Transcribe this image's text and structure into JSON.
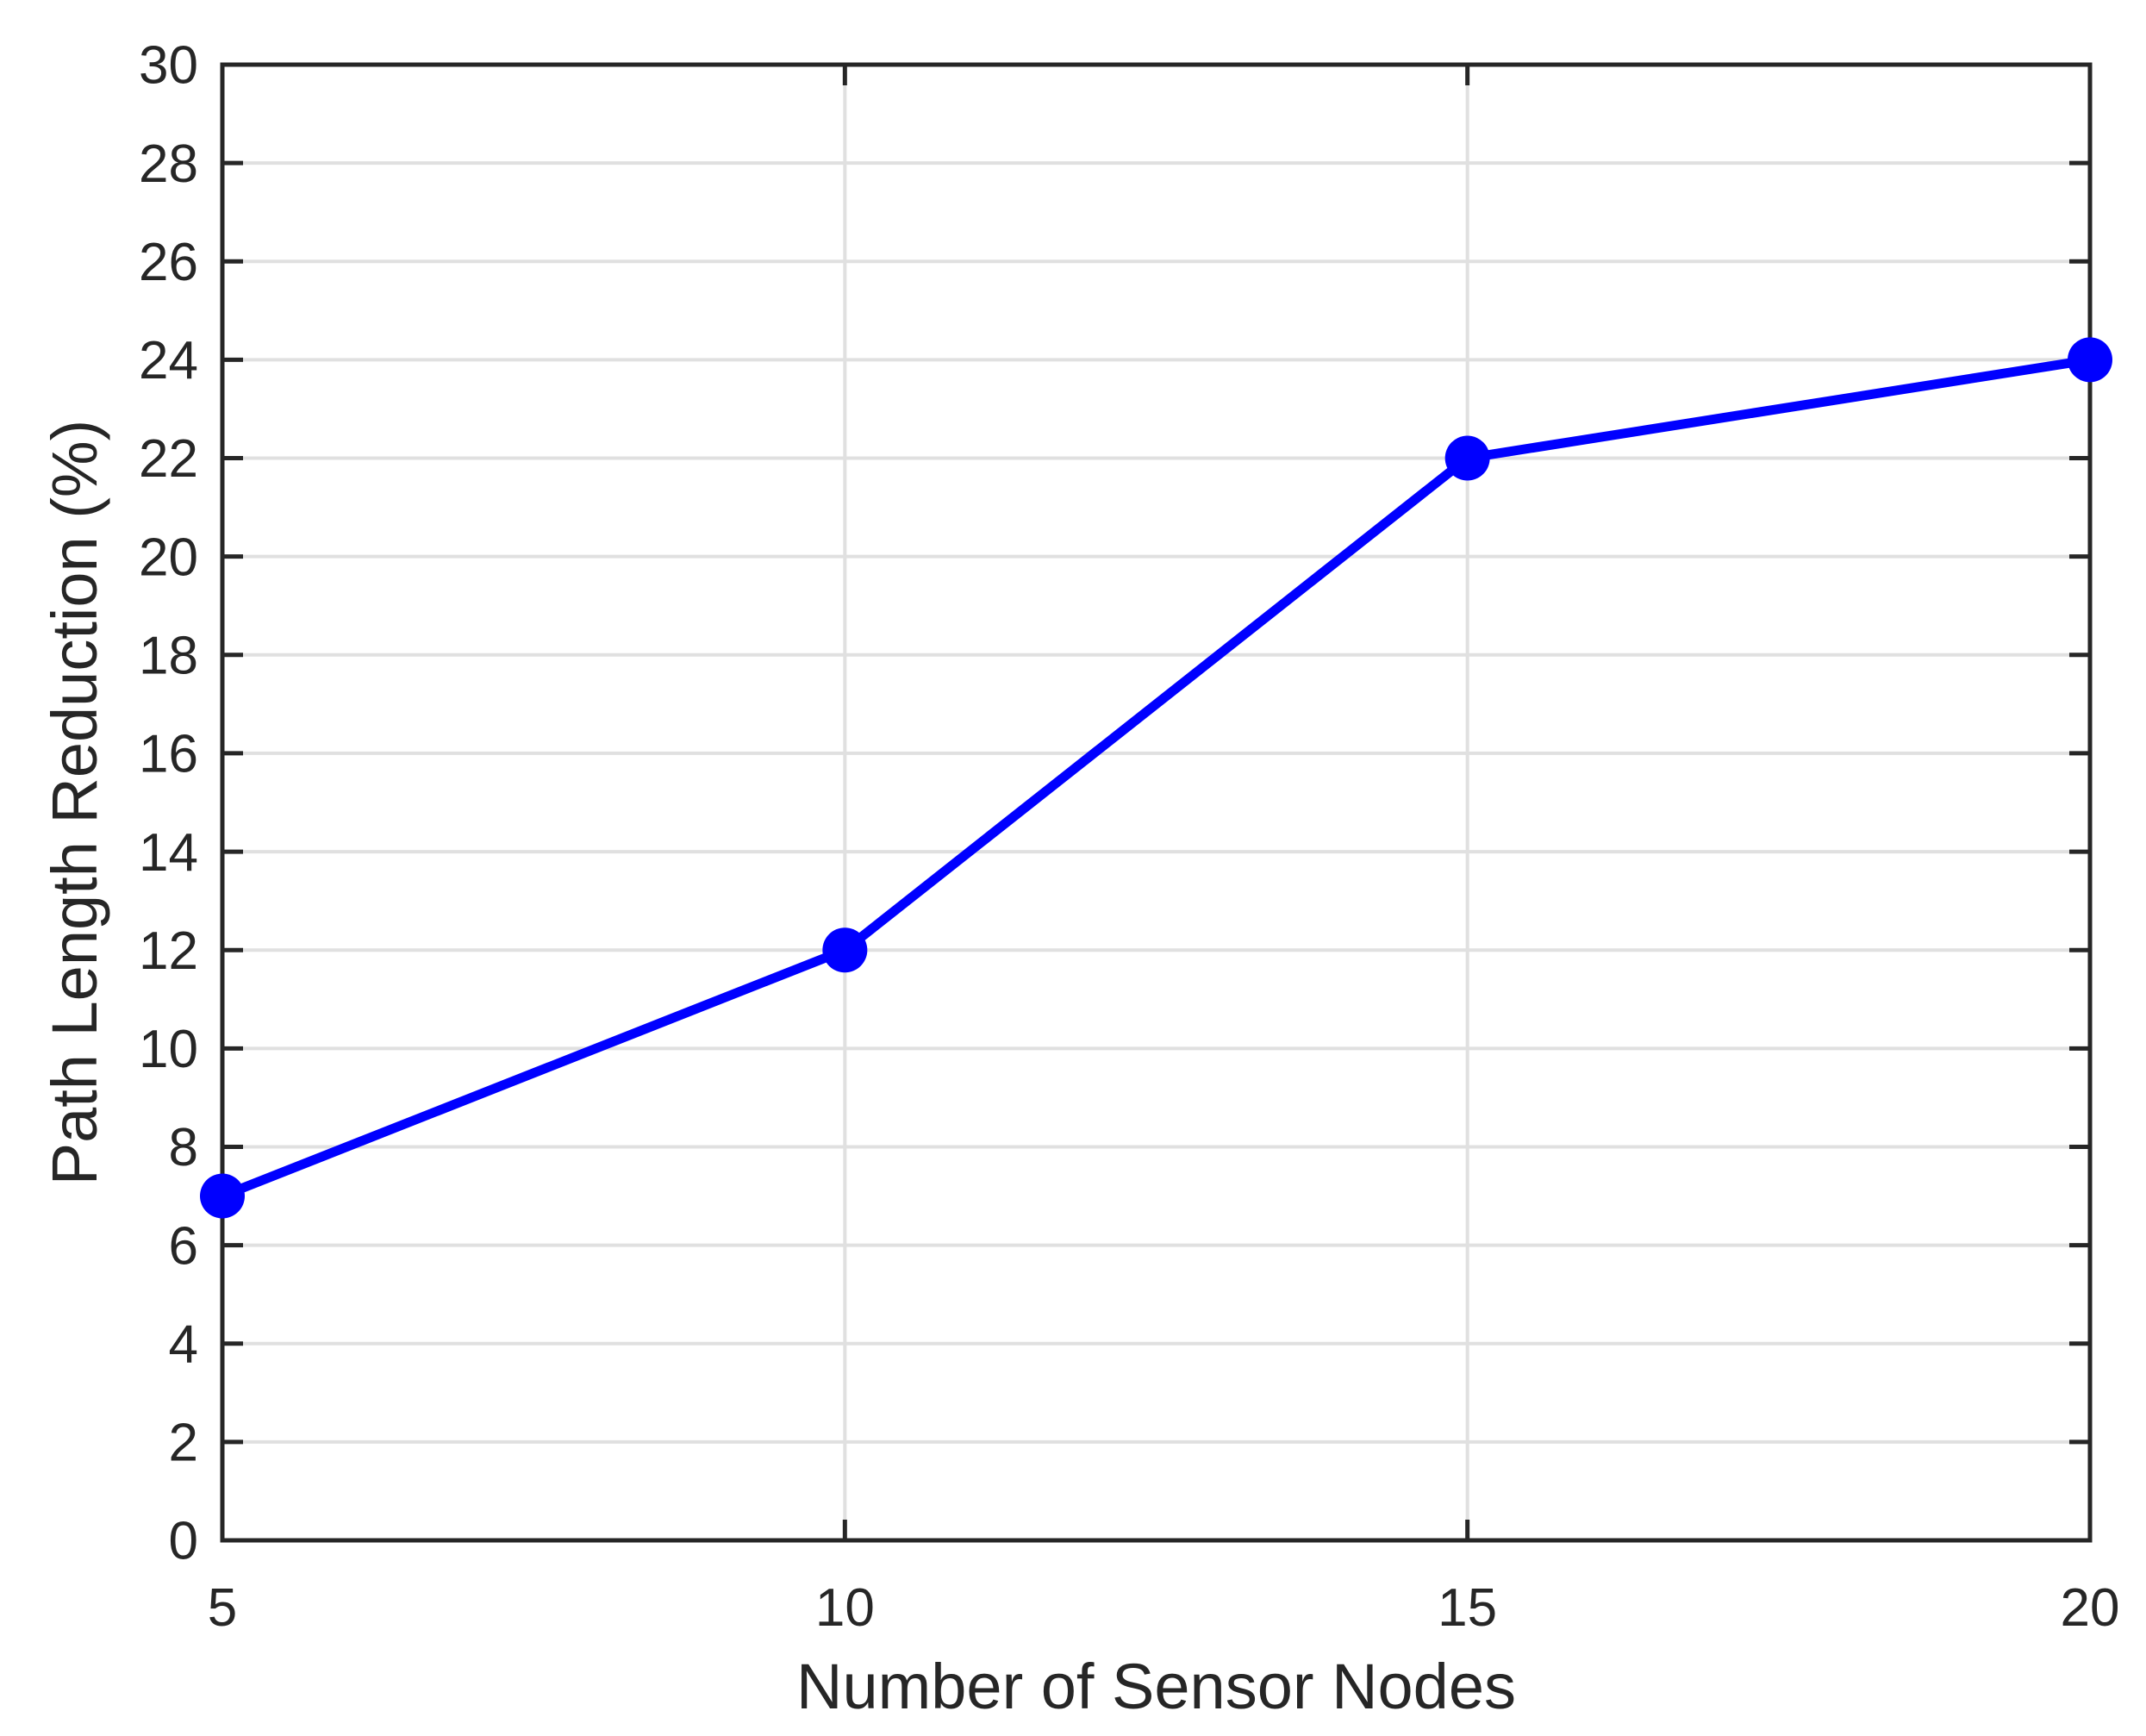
{
  "figure": {
    "background": "#FFFFFF"
  },
  "chart_data": {
    "type": "line",
    "title": "",
    "xlabel": "Number of Sensor Nodes",
    "ylabel": "Path Length Reduction (%)",
    "x": [
      5,
      10,
      15,
      20
    ],
    "series": [
      {
        "name": "path-length-reduction",
        "values": [
          7,
          12,
          22,
          24
        ],
        "color": "#0000FF",
        "marker": "circle"
      }
    ],
    "xlim": [
      5,
      20
    ],
    "ylim": [
      0,
      30
    ],
    "x_ticks": [
      5,
      10,
      15,
      20
    ],
    "x_tick_labels": [
      "5",
      "10",
      "15",
      "20"
    ],
    "y_ticks": [
      0,
      2,
      4,
      6,
      8,
      10,
      12,
      14,
      16,
      18,
      20,
      22,
      24,
      26,
      28,
      30
    ],
    "y_tick_labels": [
      "0",
      "2",
      "4",
      "6",
      "8",
      "10",
      "12",
      "14",
      "16",
      "18",
      "20",
      "22",
      "24",
      "26",
      "28",
      "30"
    ],
    "grid": "on",
    "legend": "none",
    "box": "on",
    "tick_direction": "in",
    "axis_color": "#262626",
    "grid_color": "#E0E0E0",
    "label_color": "#262626"
  }
}
